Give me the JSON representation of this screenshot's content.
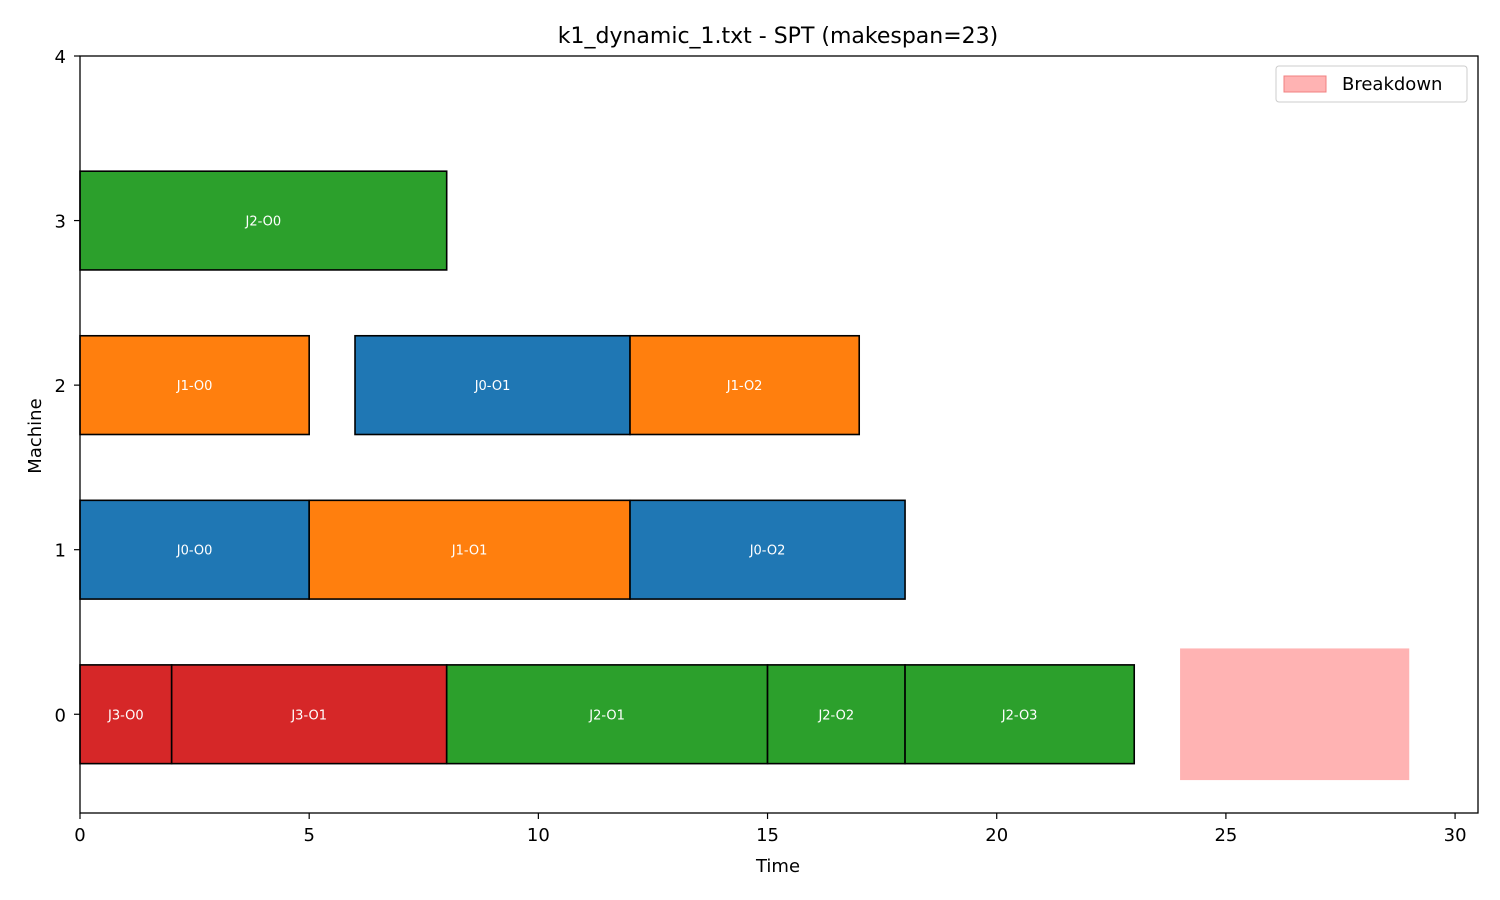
{
  "chart_data": {
    "type": "gantt",
    "title": "k1_dynamic_1.txt - SPT (makespan=23)",
    "xlabel": "Time",
    "ylabel": "Machine",
    "xlim": [
      0,
      30.5
    ],
    "ylim": [
      -0.6,
      4
    ],
    "xticks": [
      0,
      5,
      10,
      15,
      20,
      25,
      30
    ],
    "yticks": [
      0,
      1,
      2,
      3,
      4
    ],
    "grid": false,
    "legend_position": "top-right",
    "job_colors": {
      "J0": "#1f77b4",
      "J1": "#ff7f0e",
      "J2": "#2ca02c",
      "J3": "#d62728"
    },
    "operations": [
      {
        "label": "J3-O0",
        "job": "J3",
        "machine": 0,
        "start": 0,
        "end": 2
      },
      {
        "label": "J3-O1",
        "job": "J3",
        "machine": 0,
        "start": 2,
        "end": 8
      },
      {
        "label": "J2-O1",
        "job": "J2",
        "machine": 0,
        "start": 8,
        "end": 15
      },
      {
        "label": "J2-O2",
        "job": "J2",
        "machine": 0,
        "start": 15,
        "end": 18
      },
      {
        "label": "J2-O3",
        "job": "J2",
        "machine": 0,
        "start": 18,
        "end": 23
      },
      {
        "label": "J0-O0",
        "job": "J0",
        "machine": 1,
        "start": 0,
        "end": 5
      },
      {
        "label": "J1-O1",
        "job": "J1",
        "machine": 1,
        "start": 5,
        "end": 12
      },
      {
        "label": "J0-O2",
        "job": "J0",
        "machine": 1,
        "start": 12,
        "end": 18
      },
      {
        "label": "J1-O0",
        "job": "J1",
        "machine": 2,
        "start": 0,
        "end": 5
      },
      {
        "label": "J0-O1",
        "job": "J0",
        "machine": 2,
        "start": 6,
        "end": 12
      },
      {
        "label": "J1-O2",
        "job": "J1",
        "machine": 2,
        "start": 12,
        "end": 17
      },
      {
        "label": "J2-O0",
        "job": "J2",
        "machine": 3,
        "start": 0,
        "end": 8
      }
    ],
    "breakdowns": [
      {
        "machine": 0,
        "start": 24,
        "end": 29
      }
    ],
    "legend": [
      {
        "label": "Breakdown",
        "color": "#ffb3b3",
        "edge": "#f08080"
      }
    ]
  }
}
